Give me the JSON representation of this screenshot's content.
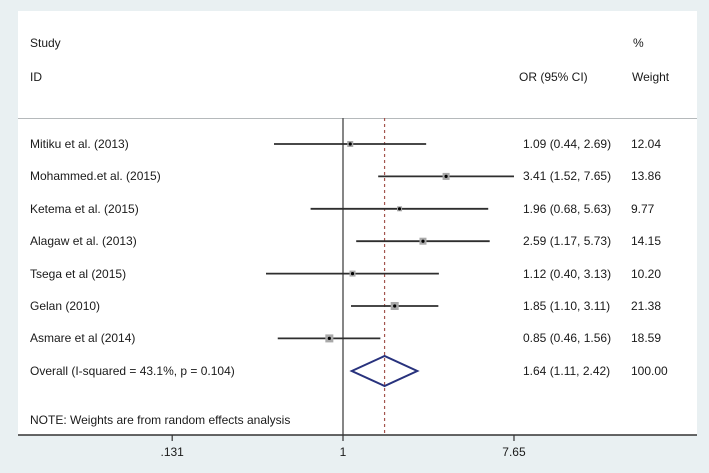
{
  "header": {
    "study_line1": "Study",
    "study_line2": "ID",
    "percent_label": "%",
    "or_label": "OR (95% CI)",
    "weight_label": "Weight"
  },
  "note": "NOTE: Weights are from random effects analysis",
  "colors": {
    "background": "#e9f0f2",
    "panel": "#ffffff",
    "text": "#1a1a1a",
    "ci_line": "#2e2e2e",
    "marker_fill": "#a9a9a9",
    "marker_dot": "#000000",
    "null_line": "#5f5f5f",
    "overall_dashed_line": "#a3544e",
    "diamond_outline": "#28327d",
    "separator": "#b5b9bb",
    "axis": "#333333"
  },
  "chart_data": {
    "type": "forest",
    "effect_measure": "OR",
    "x_axis": {
      "scale": "log10",
      "ticks": [
        {
          "value": 0.131,
          "label": ".131"
        },
        {
          "value": 1,
          "label": "1"
        },
        {
          "value": 7.65,
          "label": "7.65"
        }
      ]
    },
    "null_line_value": 1,
    "overall_dashed_value": 1.64,
    "studies": [
      {
        "label": "Mitiku et al. (2013)",
        "or": 1.09,
        "ci_low": 0.44,
        "ci_high": 2.69,
        "or_text": "1.09 (0.44, 2.69)",
        "weight": 12.04,
        "weight_text": "12.04"
      },
      {
        "label": "Mohammed.et al. (2015)",
        "or": 3.41,
        "ci_low": 1.52,
        "ci_high": 7.65,
        "or_text": "3.41 (1.52, 7.65)",
        "weight": 13.86,
        "weight_text": "13.86"
      },
      {
        "label": "Ketema et al. (2015)",
        "or": 1.96,
        "ci_low": 0.68,
        "ci_high": 5.63,
        "or_text": "1.96 (0.68, 5.63)",
        "weight": 9.77,
        "weight_text": "9.77"
      },
      {
        "label": "Alagaw et al. (2013)",
        "or": 2.59,
        "ci_low": 1.17,
        "ci_high": 5.73,
        "or_text": "2.59 (1.17, 5.73)",
        "weight": 14.15,
        "weight_text": "14.15"
      },
      {
        "label": "Tsega et al (2015)",
        "or": 1.12,
        "ci_low": 0.4,
        "ci_high": 3.13,
        "or_text": "1.12 (0.40, 3.13)",
        "weight": 10.2,
        "weight_text": "10.20"
      },
      {
        "label": "Gelan (2010)",
        "or": 1.85,
        "ci_low": 1.1,
        "ci_high": 3.11,
        "or_text": "1.85 (1.10, 3.11)",
        "weight": 21.38,
        "weight_text": "21.38"
      },
      {
        "label": "Asmare et al (2014)",
        "or": 0.85,
        "ci_low": 0.46,
        "ci_high": 1.56,
        "or_text": "0.85 (0.46, 1.56)",
        "weight": 18.59,
        "weight_text": "18.59"
      }
    ],
    "overall": {
      "label": "Overall  (I-squared = 43.1%, p = 0.104)",
      "or": 1.64,
      "ci_low": 1.11,
      "ci_high": 2.42,
      "or_text": "1.64 (1.11, 2.42)",
      "weight_text": "100.00",
      "i_squared": "43.1%",
      "p_value": "0.104"
    }
  }
}
